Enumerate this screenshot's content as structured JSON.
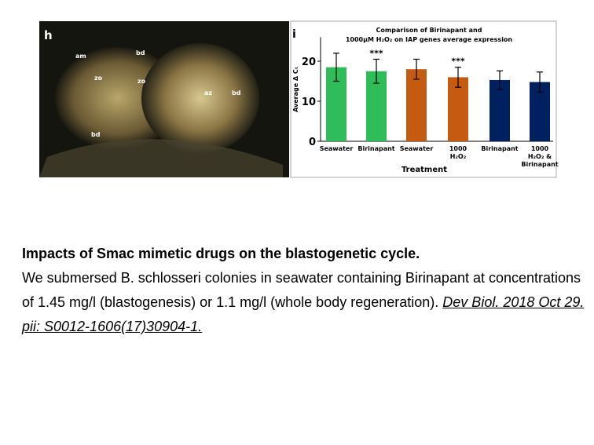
{
  "micrograph": {
    "panel": "h",
    "labels": [
      "am",
      "bd",
      "zo",
      "zo",
      "bd",
      "az",
      "bd"
    ]
  },
  "chart_data": {
    "type": "bar",
    "panel": "i",
    "title": "Comparison of Birinapant and\n1000µM H₂O₂ on IAP genes average expression",
    "x_label": "Treatment",
    "y_label": "Average Δ Cₜ",
    "categories": [
      "Seawater",
      "Birinapant",
      "Seawater",
      "1000\nH₂O₂",
      "Birinapant",
      "1000\nH₂O₂ &\nBirinapant"
    ],
    "values": [
      18.5,
      17.5,
      18,
      16,
      15.3,
      14.8
    ],
    "errors": [
      3.5,
      3,
      2.5,
      2.5,
      2.3,
      2.5
    ],
    "significance": [
      null,
      "***",
      null,
      "***",
      null,
      null
    ],
    "colors": [
      "#2ebd59",
      "#2ebd59",
      "#c55a11",
      "#c55a11",
      "#002060",
      "#002060"
    ],
    "ylim": [
      0,
      26
    ],
    "yticks": [
      0,
      10,
      20
    ]
  },
  "caption": {
    "title": "Impacts of Smac mimetic drugs on the blastogenetic cycle.",
    "text": "We submersed B. schlosseri colonies in seawater containing Birinapant at concentrations of 1.45 mg/l (blastogenesis) or 1.1 mg/l (whole body regeneration).",
    "link": "Dev Biol. 2018 Oct 29. pii: S0012-1606(17)30904-1."
  }
}
